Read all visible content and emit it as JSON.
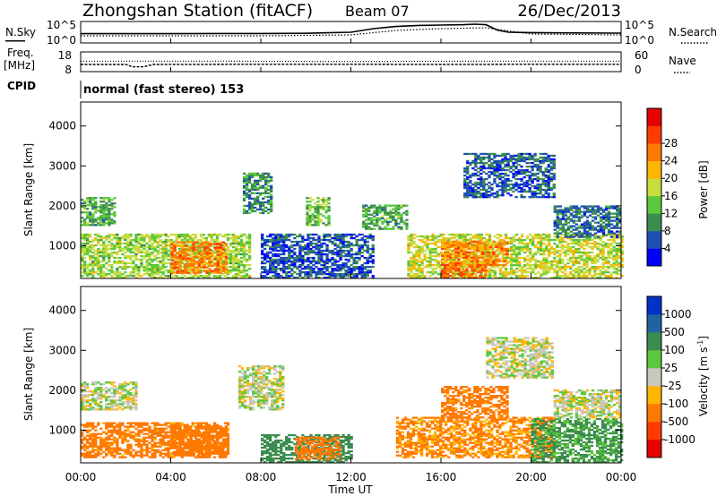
{
  "header": {
    "station": "Zhongshan Station (fitACF)",
    "beam": "Beam 07",
    "date": "26/Dec/2013"
  },
  "noise_panel": {
    "left_label": "N.Sky",
    "left_ticks": [
      "10^5",
      "10^0"
    ],
    "right_ticks": [
      "10^5",
      "10^0"
    ],
    "right_label": "N.Search",
    "right_label_style": "dotted"
  },
  "freq_panel": {
    "left_label_top": "Freq.",
    "left_label_bottom": "[MHz]",
    "left_ticks": [
      "18",
      "8"
    ],
    "right_ticks": [
      "60",
      "0"
    ],
    "right_label": "Nave",
    "right_label_style": "dotted"
  },
  "cpid_panel": {
    "label": "CPID",
    "text": "normal (fast stereo) 153"
  },
  "range_axis": {
    "label": "Slant Range [km]",
    "ticks": [
      1000,
      2000,
      3000,
      4000
    ],
    "ylim": [
      180,
      4600
    ]
  },
  "time_axis": {
    "label": "Time UT",
    "tick_labels": [
      "00:00",
      "04:00",
      "08:00",
      "12:00",
      "16:00",
      "20:00",
      "00:00"
    ],
    "tick_hours": [
      0,
      4,
      8,
      12,
      16,
      20,
      24
    ]
  },
  "colorbars": {
    "power": {
      "label": "Power [dB]",
      "tick_labels": [
        "4",
        "8",
        "12",
        "16",
        "20",
        "24",
        "28"
      ],
      "colors": [
        "#0000ff",
        "#1e50b4",
        "#3c8c50",
        "#5ac83c",
        "#c8dc3c",
        "#ffb400",
        "#ff7800",
        "#ff3c00",
        "#e60000"
      ]
    },
    "velocity": {
      "label": "Velocity [m s",
      "label_sup": "-1",
      "label_end": "]",
      "tick_labels": [
        "1000",
        "500",
        "100",
        "25",
        "-25",
        "-100",
        "-500",
        "-1000"
      ],
      "colors": [
        "#0032c8",
        "#1e64a0",
        "#3c8c50",
        "#5ac83c",
        "#c8c8be",
        "#ffb400",
        "#ff7800",
        "#ff3c00",
        "#e60000"
      ]
    }
  },
  "chart_data": [
    {
      "type": "line",
      "title": "Zhongshan Station (fitACF) Beam 07 26/Dec/2013",
      "ylabel": "N.Sky",
      "x_range_hours": [
        0,
        24
      ],
      "series": [
        {
          "name": "N.Sky",
          "style": "solid",
          "x": [
            0,
            2,
            4,
            6,
            8,
            10,
            12,
            13,
            14,
            15,
            16,
            17,
            17.5,
            18,
            18.5,
            19,
            20,
            22,
            24
          ],
          "level": [
            0.42,
            0.42,
            0.42,
            0.43,
            0.43,
            0.44,
            0.5,
            0.7,
            0.82,
            0.88,
            0.9,
            0.92,
            0.95,
            0.92,
            0.62,
            0.5,
            0.48,
            0.46,
            0.45
          ]
        },
        {
          "name": "N.Search",
          "style": "dotted",
          "x": [
            0,
            4,
            8,
            12,
            14,
            16,
            18,
            20,
            24
          ],
          "level": [
            0.3,
            0.3,
            0.3,
            0.35,
            0.6,
            0.7,
            0.75,
            0.4,
            0.35
          ]
        }
      ]
    },
    {
      "type": "line",
      "ylabel": "Freq. [MHz]",
      "ylim": [
        8,
        18
      ],
      "x_range_hours": [
        0,
        24
      ],
      "series": [
        {
          "name": "Freq.",
          "style": "solid",
          "x": [
            0,
            2,
            2.3,
            2.8,
            3.2,
            8,
            12,
            16,
            20,
            24
          ],
          "y": [
            11.5,
            11.5,
            10.2,
            10.2,
            11.5,
            11.6,
            11.6,
            11.5,
            11.6,
            11.6
          ]
        },
        {
          "name": "Nave",
          "style": "dotted",
          "ylim": [
            0,
            60
          ],
          "x": [
            0,
            6,
            12,
            18,
            24
          ],
          "y": [
            32,
            32,
            31,
            32,
            32
          ]
        }
      ]
    },
    {
      "type": "heatmap",
      "title": "Power",
      "xlabel": "",
      "ylabel": "Slant Range [km]",
      "x_range_hours": [
        0,
        24
      ],
      "ylim": [
        180,
        4600
      ],
      "value_label": "Power [dB]",
      "regions": [
        {
          "t": [
            0,
            7.5
          ],
          "r": [
            180,
            1300
          ],
          "value": 16
        },
        {
          "t": [
            4,
            6.5
          ],
          "r": [
            300,
            1100
          ],
          "value": 26
        },
        {
          "t": [
            0,
            1.5
          ],
          "r": [
            1500,
            2200
          ],
          "value": 12
        },
        {
          "t": [
            7.2,
            8.5
          ],
          "r": [
            1800,
            2800
          ],
          "value": 10
        },
        {
          "t": [
            8,
            13
          ],
          "r": [
            180,
            1300
          ],
          "value": 6
        },
        {
          "t": [
            10,
            11
          ],
          "r": [
            1500,
            2200
          ],
          "value": 14
        },
        {
          "t": [
            12.5,
            14.5
          ],
          "r": [
            1400,
            2000
          ],
          "value": 12
        },
        {
          "t": [
            14.5,
            24
          ],
          "r": [
            180,
            1300
          ],
          "value": 18
        },
        {
          "t": [
            16,
            19
          ],
          "r": [
            500,
            1100
          ],
          "value": 25
        },
        {
          "t": [
            16,
            18
          ],
          "r": [
            180,
            500
          ],
          "value": 27
        },
        {
          "t": [
            17,
            21
          ],
          "r": [
            2200,
            3300
          ],
          "value": 7
        },
        {
          "t": [
            21,
            24
          ],
          "r": [
            1200,
            2000
          ],
          "value": 8
        }
      ]
    },
    {
      "type": "heatmap",
      "title": "Velocity",
      "xlabel": "Time UT",
      "ylabel": "Slant Range [km]",
      "x_range_hours": [
        0,
        24
      ],
      "ylim": [
        180,
        4600
      ],
      "value_label": "Velocity [m s-1]",
      "regions": [
        {
          "t": [
            0,
            2.5
          ],
          "r": [
            1500,
            2200
          ],
          "value": 0
        },
        {
          "t": [
            0,
            6.5
          ],
          "r": [
            300,
            1200
          ],
          "value": -150
        },
        {
          "t": [
            4,
            6.5
          ],
          "r": [
            350,
            1100
          ],
          "value": -300
        },
        {
          "t": [
            7,
            9
          ],
          "r": [
            1500,
            2600
          ],
          "value": 0
        },
        {
          "t": [
            8,
            12
          ],
          "r": [
            180,
            900
          ],
          "value": 200
        },
        {
          "t": [
            9.5,
            11.5
          ],
          "r": [
            250,
            800
          ],
          "value": -200
        },
        {
          "t": [
            14,
            21
          ],
          "r": [
            300,
            1300
          ],
          "value": -120
        },
        {
          "t": [
            16,
            19
          ],
          "r": [
            1300,
            2100
          ],
          "value": -150
        },
        {
          "t": [
            18,
            21
          ],
          "r": [
            2300,
            3300
          ],
          "value": 0
        },
        {
          "t": [
            20,
            24
          ],
          "r": [
            180,
            1300
          ],
          "value": 120
        },
        {
          "t": [
            21,
            24
          ],
          "r": [
            1300,
            2000
          ],
          "value": 0
        }
      ]
    }
  ]
}
